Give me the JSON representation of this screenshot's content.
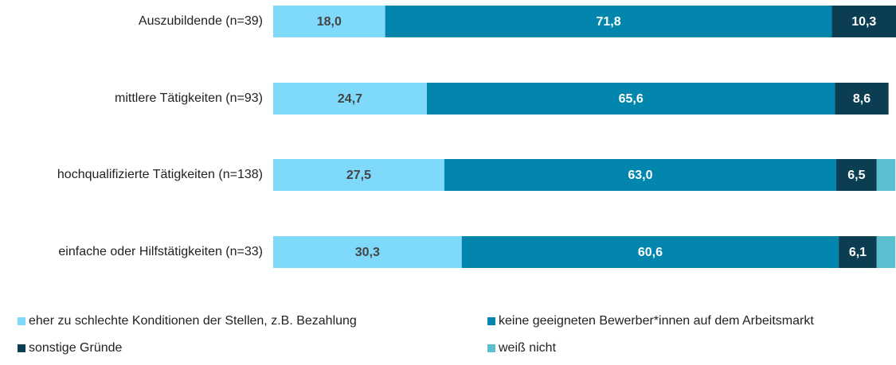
{
  "chart_data": {
    "type": "stacked-bar-horizontal",
    "categories": [
      "Auszubildende (n=39)",
      "mittlere Tätigkeiten (n=93)",
      "hochqualifizierte Tätigkeiten (n=138)",
      "einfache oder Hilfstätigkeiten (n=33)"
    ],
    "xlim": [
      0,
      100.1
    ],
    "series": [
      {
        "name": "eher zu schlechte Konditionen der Stellen,  z.B. Bezahlung",
        "color": "#7fd9fa",
        "values": [
          18.0,
          24.7,
          27.5,
          30.3
        ],
        "value_labels": [
          "18,0",
          "24,7",
          "27,5",
          "30,3"
        ]
      },
      {
        "name": "keine geeigneten Bewerber*innen auf dem Arbeitsmarkt",
        "color": "#0386ae",
        "values": [
          71.8,
          65.6,
          63.0,
          60.6
        ],
        "value_labels": [
          "71,8",
          "65,6",
          "63,0",
          "60,6"
        ]
      },
      {
        "name": "sonstige Gründe",
        "color": "#0b3e52",
        "values": [
          10.3,
          8.6,
          6.5,
          6.1
        ],
        "value_labels": [
          "10,3",
          "8,6",
          "6,5",
          "6,1"
        ]
      },
      {
        "name": "weiß nicht",
        "color": "#5cbfcf",
        "values": [
          0,
          0,
          3.0,
          3.0
        ]
      }
    ]
  }
}
